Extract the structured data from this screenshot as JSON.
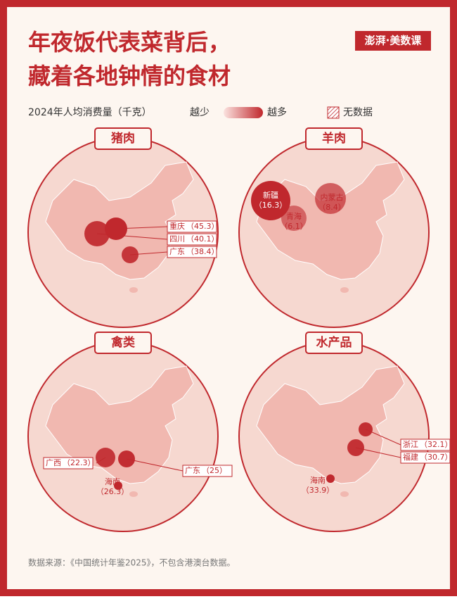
{
  "header": {
    "title_line1": "年夜饭代表菜背后，",
    "title_line2": "藏着各地钟情的食材",
    "logo": "澎湃·美数课"
  },
  "legend": {
    "label": "2024年人均消费量（千克）",
    "low": "越少",
    "high": "越多",
    "no_data": "无数据"
  },
  "panels": [
    {
      "title": "猪肉",
      "callouts": [
        {
          "region": "重庆",
          "value": 45.3,
          "value_label": "（45.3）"
        },
        {
          "region": "四川",
          "value": 40.1,
          "value_label": "（40.1）"
        },
        {
          "region": "广东",
          "value": 38.4,
          "value_label": "（38.4）"
        }
      ]
    },
    {
      "title": "羊肉",
      "callouts": [
        {
          "region": "新疆",
          "value": 16.3,
          "value_label": "（16.3）"
        },
        {
          "region": "青海",
          "value": 6.1,
          "value_label": "（6.1）"
        },
        {
          "region": "内蒙古",
          "value": 8.4,
          "value_label": "（8.4）"
        }
      ]
    },
    {
      "title": "禽类",
      "callouts": [
        {
          "region": "广西",
          "value": 22.3,
          "value_label": "（22.3）"
        },
        {
          "region": "海南",
          "value": 26.3,
          "value_label": "（26.3）"
        },
        {
          "region": "广东",
          "value": 25,
          "value_label": "（25）"
        }
      ]
    },
    {
      "title": "水产品",
      "callouts": [
        {
          "region": "浙江",
          "value": 32.1,
          "value_label": "（32.1）"
        },
        {
          "region": "福建",
          "value": 30.7,
          "value_label": "（30.7）"
        },
        {
          "region": "海南",
          "value": 33.9,
          "value_label": "（33.9）"
        }
      ]
    }
  ],
  "source": "数据来源：《中国统计年鉴2025》，不包含港澳台数据。"
}
